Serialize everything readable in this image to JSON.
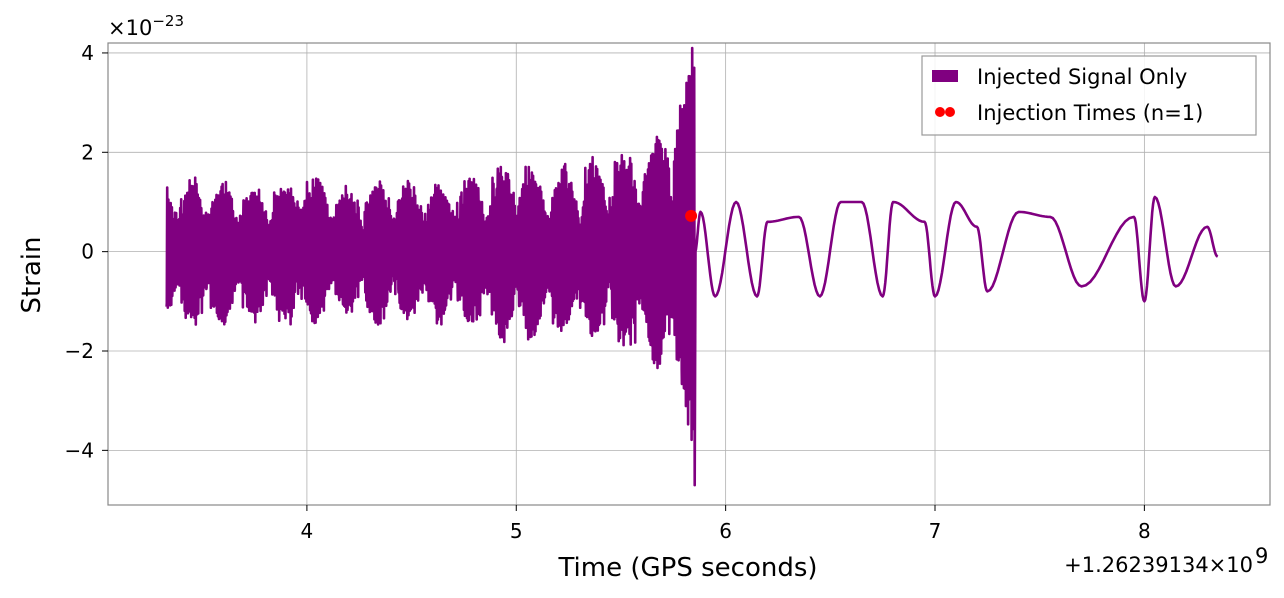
{
  "chart_data": {
    "type": "line",
    "xlabel": "Time (GPS seconds)",
    "ylabel": "Strain",
    "x_offset_label": "+1.26239134×10",
    "x_offset_exponent": "9",
    "y_scale_label": "×10",
    "y_scale_exponent": "−23",
    "xlim": [
      3.05,
      8.6
    ],
    "ylim": [
      -5.1,
      4.2
    ],
    "xticks": [
      4,
      5,
      6,
      7,
      8
    ],
    "xtick_labels": [
      "4",
      "5",
      "6",
      "7",
      "8"
    ],
    "yticks": [
      -4,
      -2,
      0,
      2,
      4
    ],
    "ytick_labels": [
      "−4",
      "−2",
      "0",
      "2",
      "4"
    ],
    "grid": true,
    "legend_position": "top-right",
    "series": [
      {
        "name": "Injected Signal Only",
        "color": "#800080",
        "t_start": 3.33,
        "t_end": 8.35,
        "dense_until": 5.85,
        "peak_time": 5.85,
        "approx_range": [
          -4.7,
          3.7
        ],
        "envelope_points": [
          {
            "t": 3.4,
            "max": 1.3,
            "min": -1.4
          },
          {
            "t": 3.5,
            "max": 1.4,
            "min": -1.5
          },
          {
            "t": 3.7,
            "max": 1.3,
            "min": -1.2
          },
          {
            "t": 3.9,
            "max": 1.4,
            "min": -1.3
          },
          {
            "t": 3.95,
            "max": 1.2,
            "min": -1.8
          },
          {
            "t": 4.2,
            "max": 1.2,
            "min": -1.2
          },
          {
            "t": 4.4,
            "max": 1.4,
            "min": -1.4
          },
          {
            "t": 4.6,
            "max": 1.3,
            "min": -1.3
          },
          {
            "t": 4.84,
            "max": 1.4,
            "min": -1.4
          },
          {
            "t": 4.95,
            "max": 1.8,
            "min": -1.8
          },
          {
            "t": 5.2,
            "max": 1.6,
            "min": -1.5
          },
          {
            "t": 5.4,
            "max": 1.9,
            "min": -1.7
          },
          {
            "t": 5.6,
            "max": 2.1,
            "min": -2.0
          },
          {
            "t": 5.7,
            "max": 2.4,
            "min": -2.3
          },
          {
            "t": 5.8,
            "max": 2.9,
            "min": -3.0
          },
          {
            "t": 5.85,
            "max": 3.7,
            "min": -4.7
          }
        ],
        "tail_peaks": [
          {
            "t": 5.88,
            "v": 0.8
          },
          {
            "t": 5.95,
            "v": -0.9
          },
          {
            "t": 6.05,
            "v": 1.0
          },
          {
            "t": 6.15,
            "v": -0.9
          },
          {
            "t": 6.2,
            "v": 0.6
          },
          {
            "t": 6.35,
            "v": 0.7
          },
          {
            "t": 6.45,
            "v": -0.9
          },
          {
            "t": 6.55,
            "v": 1.0
          },
          {
            "t": 6.65,
            "v": 1.0
          },
          {
            "t": 6.75,
            "v": -0.9
          },
          {
            "t": 6.8,
            "v": 1.0
          },
          {
            "t": 6.95,
            "v": 0.6
          },
          {
            "t": 7.0,
            "v": -0.9
          },
          {
            "t": 7.1,
            "v": 1.0
          },
          {
            "t": 7.2,
            "v": 0.5
          },
          {
            "t": 7.25,
            "v": -0.8
          },
          {
            "t": 7.4,
            "v": 0.8
          },
          {
            "t": 7.55,
            "v": 0.7
          },
          {
            "t": 7.7,
            "v": -0.7
          },
          {
            "t": 7.95,
            "v": 0.7
          },
          {
            "t": 8.0,
            "v": -1.0
          },
          {
            "t": 8.05,
            "v": 1.1
          },
          {
            "t": 8.15,
            "v": -0.7
          },
          {
            "t": 8.3,
            "v": 0.5
          }
        ]
      },
      {
        "name": "Injection Times (n=1)",
        "type": "scatter",
        "color": "#ff0000",
        "points": [
          {
            "x": 5.835,
            "y": 0.72
          }
        ]
      }
    ]
  }
}
